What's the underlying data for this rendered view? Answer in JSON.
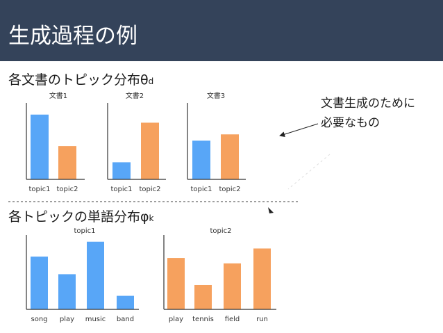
{
  "slide": {
    "title": "生成過程の例",
    "section_doc": "各文書のトピック分布θ",
    "section_doc_sub": "d",
    "section_word": "各トピックの単語分布φ",
    "section_word_sub": "k",
    "note_line1": "文書生成のために",
    "note_line2": "必要なもの"
  },
  "colors": {
    "header_bg": "#34435a",
    "blue": "#58a6f7",
    "orange": "#f6a15e",
    "axis": "#333333",
    "divider": "#666666"
  },
  "chart_data": [
    {
      "type": "bar",
      "title": "文書1",
      "categories": [
        "topic1",
        "topic2"
      ],
      "values": [
        0.72,
        0.37
      ],
      "colors": [
        "#58a6f7",
        "#f6a15e"
      ],
      "ylim": [
        0,
        0.85
      ]
    },
    {
      "type": "bar",
      "title": "文書2",
      "categories": [
        "topic1",
        "topic2"
      ],
      "values": [
        0.19,
        0.63
      ],
      "colors": [
        "#58a6f7",
        "#f6a15e"
      ],
      "ylim": [
        0,
        0.85
      ]
    },
    {
      "type": "bar",
      "title": "文書3",
      "categories": [
        "topic1",
        "topic2"
      ],
      "values": [
        0.43,
        0.5
      ],
      "colors": [
        "#58a6f7",
        "#f6a15e"
      ],
      "ylim": [
        0,
        0.85
      ]
    },
    {
      "type": "bar",
      "title": "topic1",
      "categories": [
        "song",
        "play",
        "music",
        "band"
      ],
      "values": [
        0.39,
        0.26,
        0.5,
        0.1
      ],
      "colors": [
        "#58a6f7",
        "#58a6f7",
        "#58a6f7",
        "#58a6f7"
      ],
      "ylim": [
        0,
        0.55
      ]
    },
    {
      "type": "bar",
      "title": "topic2",
      "categories": [
        "play",
        "tennis",
        "field",
        "run"
      ],
      "values": [
        0.38,
        0.18,
        0.34,
        0.45
      ],
      "colors": [
        "#f6a15e",
        "#f6a15e",
        "#f6a15e",
        "#f6a15e"
      ],
      "ylim": [
        0,
        0.55
      ]
    }
  ]
}
